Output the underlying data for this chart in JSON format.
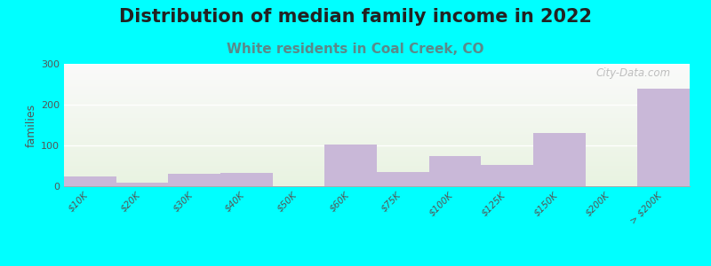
{
  "title": "Distribution of median family income in 2022",
  "subtitle": "White residents in Coal Creek, CO",
  "categories": [
    "$10K",
    "$20K",
    "$30K",
    "$40K",
    "$50K",
    "$60K",
    "$75K",
    "$100K",
    "$125K",
    "$150K",
    "$200K",
    "> $200K"
  ],
  "values": [
    25,
    8,
    30,
    32,
    0,
    103,
    35,
    75,
    52,
    130,
    0,
    240
  ],
  "bar_color": "#c9b8d8",
  "background_color": "#00FFFF",
  "ylabel": "families",
  "ylim": [
    0,
    300
  ],
  "yticks": [
    0,
    100,
    200,
    300
  ],
  "title_fontsize": 15,
  "subtitle_fontsize": 11,
  "subtitle_color": "#5a8a8a",
  "watermark": "City-Data.com",
  "grid_color": "#dddddd",
  "tick_label_color": "#555555",
  "tick_label_size": 7.5
}
